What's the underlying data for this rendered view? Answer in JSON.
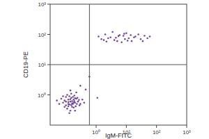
{
  "chart_data": {
    "type": "scatter",
    "x_label": "IgM-FITC",
    "y_label": "CD19-PE",
    "log": true,
    "grid": false,
    "color": "#5b2a8c",
    "marker": "dot",
    "xlim": [
      0.03,
      1000
    ],
    "ylim": [
      0.1,
      1000
    ],
    "xticks": [
      {
        "value": 1,
        "label": "10⁰"
      },
      {
        "value": 10,
        "label": "10¹"
      },
      {
        "value": 100,
        "label": "10²"
      },
      {
        "value": 1000,
        "label": "10³"
      }
    ],
    "yticks": [
      {
        "value": 1,
        "label": "10⁰"
      },
      {
        "value": 10,
        "label": "10¹"
      },
      {
        "value": 100,
        "label": "10²"
      },
      {
        "value": 1000,
        "label": "10³"
      }
    ],
    "quadrant_gate": {
      "x": 0.6,
      "y": 10
    },
    "x": [
      0.14,
      0.12,
      0.18,
      0.1,
      0.2,
      0.15,
      0.09,
      0.16,
      0.22,
      0.13,
      0.11,
      0.17,
      0.25,
      0.08,
      0.19,
      0.14,
      0.12,
      0.3,
      0.07,
      0.21,
      0.16,
      0.13,
      0.1,
      0.24,
      0.18,
      0.15,
      0.06,
      0.27,
      0.12,
      0.2,
      0.35,
      0.14,
      0.09,
      0.17,
      0.23,
      0.11,
      0.19,
      0.13,
      0.28,
      0.16,
      0.1,
      0.22,
      0.15,
      0.08,
      0.4,
      0.12,
      0.2,
      0.05,
      0.18,
      0.14,
      1.5,
      3,
      5,
      8,
      12,
      20,
      2,
      4,
      10,
      30,
      6,
      15,
      2.5,
      40,
      7,
      1.2,
      25,
      9,
      3.5,
      18,
      50,
      5.5,
      11,
      2.2,
      14,
      60,
      4.5,
      8.5,
      1.8,
      35,
      0.3,
      0.45,
      1.1,
      0.6
    ],
    "values": [
      0.6,
      0.5,
      0.7,
      0.45,
      0.55,
      0.8,
      0.65,
      0.4,
      0.75,
      0.9,
      0.35,
      0.5,
      0.6,
      0.55,
      0.95,
      0.3,
      0.7,
      0.5,
      0.75,
      0.42,
      0.62,
      0.48,
      0.85,
      0.8,
      0.38,
      1.1,
      0.5,
      0.68,
      0.58,
      0.3,
      0.7,
      0.72,
      0.4,
      0.85,
      0.5,
      1.0,
      0.62,
      0.25,
      0.45,
      0.52,
      0.6,
      1.2,
      0.46,
      0.9,
      0.55,
      0.42,
      0.78,
      0.65,
      0.56,
      1.4,
      70,
      80,
      60,
      90,
      75,
      85,
      100,
      65,
      110,
      70,
      95,
      60,
      75,
      90,
      55,
      85,
      100,
      70,
      120,
      80,
      75,
      88,
      62,
      58,
      95,
      85,
      78,
      105,
      65,
      60,
      2,
      1.5,
      0.8,
      4
    ]
  }
}
